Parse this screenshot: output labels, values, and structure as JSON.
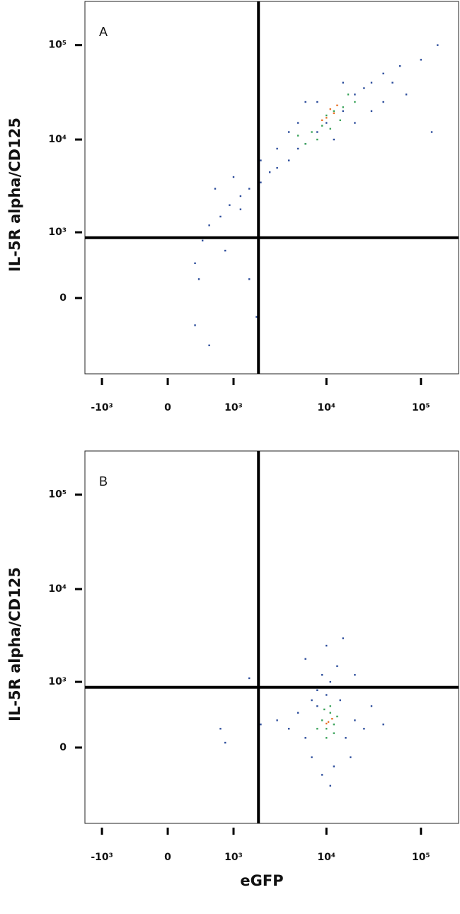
{
  "chart_data": [
    {
      "type": "scatter",
      "panel_label": "A",
      "ylabel": "IL-5R alpha/CD125",
      "scale": "biexponential",
      "xlim": [
        -1550,
        250000
      ],
      "ylim": [
        -1300,
        290000
      ],
      "xticks": [
        {
          "value": -1000,
          "label": "-10³"
        },
        0,
        {
          "value": 1000,
          "label": "10³"
        },
        {
          "value": 10000,
          "label": "10⁴"
        },
        {
          "value": 100000,
          "label": "10⁵"
        }
      ],
      "yticks": [
        0,
        {
          "value": 1000,
          "label": "10³"
        },
        {
          "value": 10000,
          "label": "10⁴"
        },
        {
          "value": 100000,
          "label": "10⁵"
        }
      ],
      "quadrant_x": 1890,
      "quadrant_y": 865,
      "series": [
        {
          "color": "#2b4c9b",
          "x": [
            400,
            500,
            700,
            900,
            1200,
            1500,
            2000,
            2500,
            3000,
            4000,
            5000,
            6000,
            8000,
            10000,
            15000,
            20000,
            25000,
            30000,
            40000,
            8000,
            5000,
            12000,
            20000,
            3000,
            50000,
            60000,
            100000,
            150000,
            70000,
            130000,
            300,
            350,
            300,
            500,
            1500,
            1800,
            600,
            1000,
            2000,
            6000,
            4000,
            15000,
            30000,
            40000,
            800,
            1200
          ],
          "y": [
            800,
            1200,
            1500,
            2000,
            2500,
            3000,
            3500,
            4500,
            5000,
            6000,
            8000,
            9000,
            12000,
            15000,
            20000,
            30000,
            35000,
            40000,
            50000,
            25000,
            15000,
            10000,
            15000,
            8000,
            40000,
            60000,
            70000,
            100000,
            30000,
            12000,
            400,
            200,
            -300,
            -600,
            200,
            -200,
            3000,
            4000,
            6000,
            25000,
            12000,
            40000,
            20000,
            25000,
            600,
            1800
          ]
        },
        {
          "color": "#3aa35a",
          "x": [
            7000,
            9000,
            10000,
            12000,
            15000,
            8000,
            20000,
            11000,
            6000,
            14000,
            17000,
            5000
          ],
          "y": [
            12000,
            14000,
            18000,
            20000,
            22000,
            10000,
            25000,
            13000,
            9000,
            16000,
            30000,
            11000
          ]
        },
        {
          "color": "#e8742a",
          "x": [
            10000,
            12000,
            11000,
            13000,
            9000
          ],
          "y": [
            17000,
            19000,
            21000,
            23000,
            16000
          ]
        }
      ]
    },
    {
      "type": "scatter",
      "panel_label": "B",
      "ylabel": "IL-5R alpha/CD125",
      "xlabel": "eGFP",
      "scale": "biexponential",
      "xlim": [
        -1550,
        250000
      ],
      "ylim": [
        -1300,
        290000
      ],
      "xticks": [
        {
          "value": -1000,
          "label": "-10³"
        },
        0,
        {
          "value": 1000,
          "label": "10³"
        },
        {
          "value": 10000,
          "label": "10⁴"
        },
        {
          "value": 100000,
          "label": "10⁵"
        }
      ],
      "yticks": [
        0,
        {
          "value": 1000,
          "label": "10³"
        },
        {
          "value": 10000,
          "label": "10⁴"
        },
        {
          "value": 100000,
          "label": "10⁵"
        }
      ],
      "quadrant_x": 1890,
      "quadrant_y": 865,
      "series": [
        {
          "color": "#2b4c9b",
          "x": [
            3000,
            4000,
            5000,
            6000,
            7000,
            8000,
            9000,
            10000,
            12000,
            14000,
            16000,
            20000,
            25000,
            30000,
            40000,
            8000,
            11000,
            13000,
            10000,
            15000,
            6000,
            20000,
            11000,
            700,
            800,
            1500,
            18000,
            2000,
            9000,
            7000
          ],
          "y": [
            300,
            200,
            400,
            100,
            -100,
            500,
            -300,
            700,
            -200,
            600,
            100,
            300,
            200,
            500,
            250,
            800,
            1000,
            1500,
            2500,
            3000,
            1800,
            1200,
            -450,
            200,
            50,
            1100,
            -100,
            250,
            1200,
            600
          ]
        },
        {
          "color": "#3aa35a",
          "x": [
            9000,
            10000,
            11000,
            12000,
            10000,
            13000,
            8000,
            11000,
            12000,
            9500
          ],
          "y": [
            300,
            200,
            400,
            250,
            100,
            350,
            200,
            500,
            150,
            450
          ]
        },
        {
          "color": "#e8742a",
          "x": [
            10500,
            11500,
            10000
          ],
          "y": [
            280,
            320,
            260
          ]
        }
      ]
    }
  ]
}
